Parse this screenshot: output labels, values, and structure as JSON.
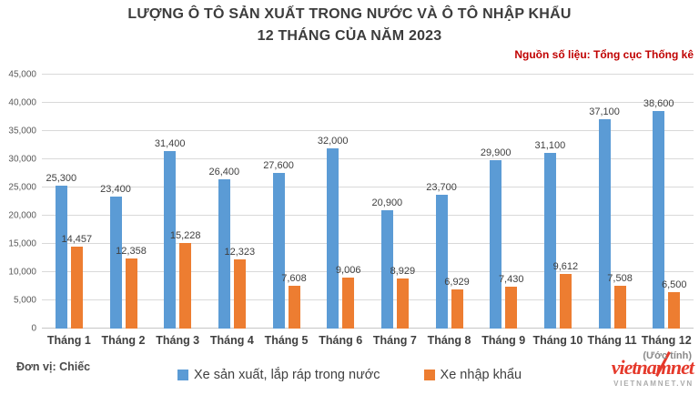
{
  "chart_data": {
    "type": "bar",
    "title": "LƯỢNG Ô TÔ SẢN XUẤT TRONG NƯỚC VÀ Ô TÔ NHẬP KHẨU",
    "title_line2": "12 THÁNG CỦA NĂM 2023",
    "source": "Nguồn số liệu: Tổng cục Thống kê",
    "unit": "Đơn vị: Chiếc",
    "estimate_note": "(Ước tính)",
    "categories": [
      "Tháng 1",
      "Tháng 2",
      "Tháng 3",
      "Tháng 4",
      "Tháng 5",
      "Tháng 6",
      "Tháng 7",
      "Tháng 8",
      "Tháng 9",
      "Tháng 10",
      "Tháng 11",
      "Tháng 12"
    ],
    "series": [
      {
        "name": "Xe sản xuất, lắp ráp trong nước",
        "color": "#5B9BD5",
        "values": [
          25300,
          23400,
          31400,
          26400,
          27600,
          32000,
          20900,
          23700,
          29900,
          31100,
          37100,
          38600
        ]
      },
      {
        "name": "Xe nhập khẩu",
        "color": "#ED7D31",
        "values": [
          14457,
          12358,
          15228,
          12323,
          7608,
          9006,
          8929,
          6929,
          7430,
          9612,
          7508,
          6500
        ]
      }
    ],
    "y_axis": {
      "min": 0,
      "max": 45000,
      "step": 5000
    },
    "grid": true,
    "legend_position": "bottom"
  },
  "watermark": {
    "logo_text": "vietnamnet",
    "logo_subtext": "VIETNAMNET.VN"
  }
}
